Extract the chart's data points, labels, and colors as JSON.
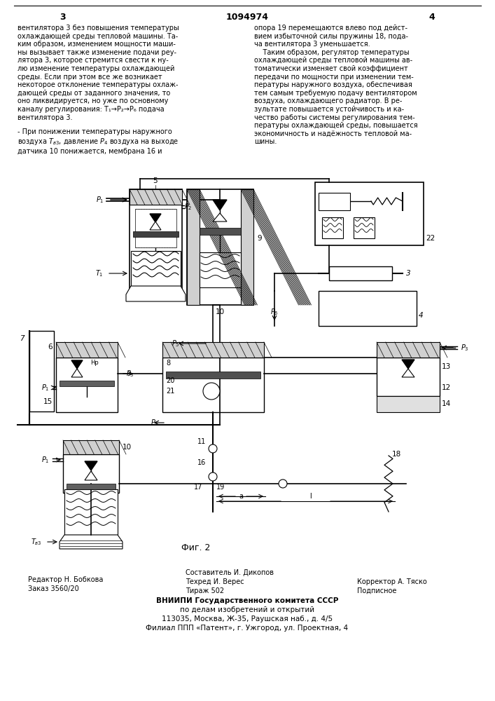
{
  "page_color": "#ffffff",
  "header_number": "1094974",
  "page_left": "3",
  "page_right": "4",
  "top_text_left": "вентилятора 3 без повышения температуры\nохлаждающей среды тепловой машины. Та-\nким образом, изменением мощности маши-\nны вызывает также изменение подачи реу-\nлятора 3, которое стремится свести к ну-\nлю изменение температуры охлаждающей\nсреды. Если при этом все же возникает\nнекоторое отклонение температуры охлаж-\nдающей среды от заданного значения, то\nоно ликвидируется, но уже по основному\nканалу регулирования: T₁→P₂→P₆ подача\nвентилятора 3.",
  "top_text_right": "опора 19 перемещаются влево под дейст-\nвием избыточной силы пружины 18, пода-\nча вентилятора 3 уменьшается.\n    Таким образом, регулятор температуры\nохлаждающей среды тепловой машины ав-\nтоматически изменяет свой коэффициент\nпередачи по мощности при изменении тем-\nпературы наружного воздуха, обеспечивая\nтем самым требуемую подачу вентилятором\nвоздуха, охлаждающего радиатор. В ре-\nзультате повышается устойчивость и ка-\nчество работы системы регулирования тем-\nпературы охлаждающей среды, повышается\nэкономичность и надёжность тепловой ма-\nшины.",
  "minus_text": "- При понижении температуры наружного\nвоздуха $T_{в3}$, давление $P_4$ воздуха на выходе\nдатчика 10 понижается, мембрана 16 и",
  "bottom_text_left1": "Редактор Н. Бобкова",
  "bottom_text_left2": "Заказ 3560/20",
  "bottom_text_center1": "Составитель И. Дикопов",
  "bottom_text_center2": "Техред И. Верес",
  "bottom_text_center3": "Тираж 502",
  "bottom_text_right1": "Корректор А. Тяско",
  "bottom_text_right2": "Подписное",
  "bottom_org1": "ВНИИПИ Государственного комитета СССР",
  "bottom_org2": "по делам изобретений и открытий",
  "bottom_org3": "113035, Москва, Ж-35, Раушская наб., д. 4/5",
  "bottom_org4": "Филиал ППП «Патент», г. Ужгород, ул. Проектная, 4",
  "fig_label": "Фиг. 2"
}
